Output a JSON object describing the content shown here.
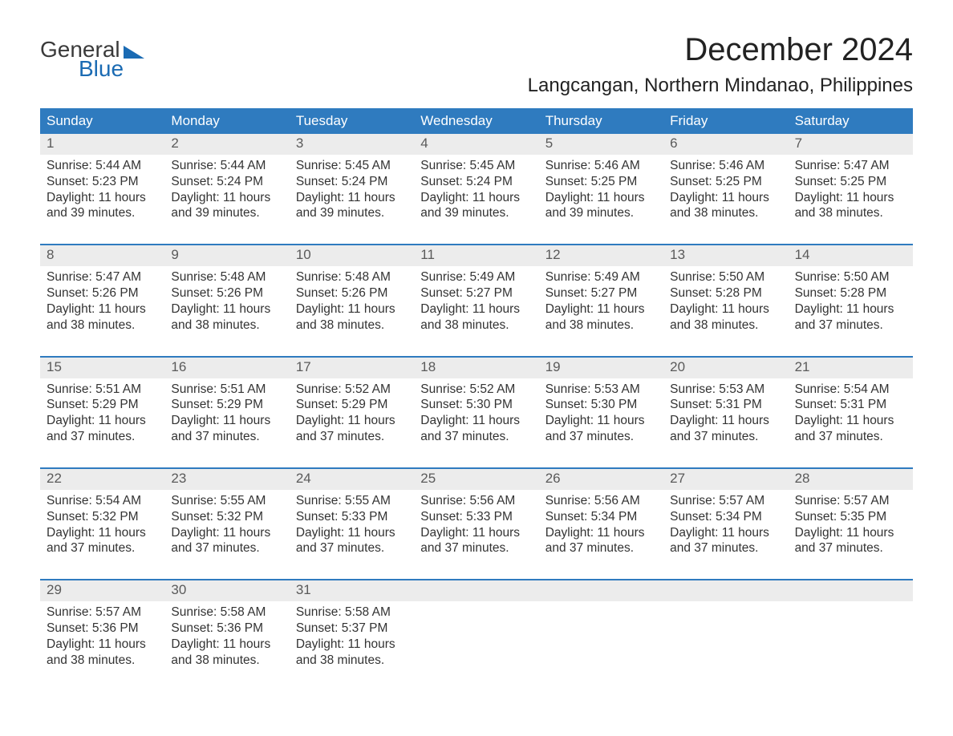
{
  "logo": {
    "text1": "General",
    "text2": "Blue"
  },
  "title": "December 2024",
  "location": "Langcangan, Northern Mindanao, Philippines",
  "colors": {
    "header_bg": "#2f7bbf",
    "header_text": "#ffffff",
    "daynum_bg": "#ececec",
    "daynum_text": "#5a5a5a",
    "body_text": "#333333",
    "week_border": "#2f7bbf",
    "logo_blue": "#1b6bb3",
    "logo_gray": "#3a3a3a"
  },
  "weekdays": [
    "Sunday",
    "Monday",
    "Tuesday",
    "Wednesday",
    "Thursday",
    "Friday",
    "Saturday"
  ],
  "weeks": [
    [
      {
        "n": "1",
        "sunrise": "5:44 AM",
        "sunset": "5:23 PM",
        "dl_h": "11",
        "dl_m": "39"
      },
      {
        "n": "2",
        "sunrise": "5:44 AM",
        "sunset": "5:24 PM",
        "dl_h": "11",
        "dl_m": "39"
      },
      {
        "n": "3",
        "sunrise": "5:45 AM",
        "sunset": "5:24 PM",
        "dl_h": "11",
        "dl_m": "39"
      },
      {
        "n": "4",
        "sunrise": "5:45 AM",
        "sunset": "5:24 PM",
        "dl_h": "11",
        "dl_m": "39"
      },
      {
        "n": "5",
        "sunrise": "5:46 AM",
        "sunset": "5:25 PM",
        "dl_h": "11",
        "dl_m": "39"
      },
      {
        "n": "6",
        "sunrise": "5:46 AM",
        "sunset": "5:25 PM",
        "dl_h": "11",
        "dl_m": "38"
      },
      {
        "n": "7",
        "sunrise": "5:47 AM",
        "sunset": "5:25 PM",
        "dl_h": "11",
        "dl_m": "38"
      }
    ],
    [
      {
        "n": "8",
        "sunrise": "5:47 AM",
        "sunset": "5:26 PM",
        "dl_h": "11",
        "dl_m": "38"
      },
      {
        "n": "9",
        "sunrise": "5:48 AM",
        "sunset": "5:26 PM",
        "dl_h": "11",
        "dl_m": "38"
      },
      {
        "n": "10",
        "sunrise": "5:48 AM",
        "sunset": "5:26 PM",
        "dl_h": "11",
        "dl_m": "38"
      },
      {
        "n": "11",
        "sunrise": "5:49 AM",
        "sunset": "5:27 PM",
        "dl_h": "11",
        "dl_m": "38"
      },
      {
        "n": "12",
        "sunrise": "5:49 AM",
        "sunset": "5:27 PM",
        "dl_h": "11",
        "dl_m": "38"
      },
      {
        "n": "13",
        "sunrise": "5:50 AM",
        "sunset": "5:28 PM",
        "dl_h": "11",
        "dl_m": "38"
      },
      {
        "n": "14",
        "sunrise": "5:50 AM",
        "sunset": "5:28 PM",
        "dl_h": "11",
        "dl_m": "37"
      }
    ],
    [
      {
        "n": "15",
        "sunrise": "5:51 AM",
        "sunset": "5:29 PM",
        "dl_h": "11",
        "dl_m": "37"
      },
      {
        "n": "16",
        "sunrise": "5:51 AM",
        "sunset": "5:29 PM",
        "dl_h": "11",
        "dl_m": "37"
      },
      {
        "n": "17",
        "sunrise": "5:52 AM",
        "sunset": "5:29 PM",
        "dl_h": "11",
        "dl_m": "37"
      },
      {
        "n": "18",
        "sunrise": "5:52 AM",
        "sunset": "5:30 PM",
        "dl_h": "11",
        "dl_m": "37"
      },
      {
        "n": "19",
        "sunrise": "5:53 AM",
        "sunset": "5:30 PM",
        "dl_h": "11",
        "dl_m": "37"
      },
      {
        "n": "20",
        "sunrise": "5:53 AM",
        "sunset": "5:31 PM",
        "dl_h": "11",
        "dl_m": "37"
      },
      {
        "n": "21",
        "sunrise": "5:54 AM",
        "sunset": "5:31 PM",
        "dl_h": "11",
        "dl_m": "37"
      }
    ],
    [
      {
        "n": "22",
        "sunrise": "5:54 AM",
        "sunset": "5:32 PM",
        "dl_h": "11",
        "dl_m": "37"
      },
      {
        "n": "23",
        "sunrise": "5:55 AM",
        "sunset": "5:32 PM",
        "dl_h": "11",
        "dl_m": "37"
      },
      {
        "n": "24",
        "sunrise": "5:55 AM",
        "sunset": "5:33 PM",
        "dl_h": "11",
        "dl_m": "37"
      },
      {
        "n": "25",
        "sunrise": "5:56 AM",
        "sunset": "5:33 PM",
        "dl_h": "11",
        "dl_m": "37"
      },
      {
        "n": "26",
        "sunrise": "5:56 AM",
        "sunset": "5:34 PM",
        "dl_h": "11",
        "dl_m": "37"
      },
      {
        "n": "27",
        "sunrise": "5:57 AM",
        "sunset": "5:34 PM",
        "dl_h": "11",
        "dl_m": "37"
      },
      {
        "n": "28",
        "sunrise": "5:57 AM",
        "sunset": "5:35 PM",
        "dl_h": "11",
        "dl_m": "37"
      }
    ],
    [
      {
        "n": "29",
        "sunrise": "5:57 AM",
        "sunset": "5:36 PM",
        "dl_h": "11",
        "dl_m": "38"
      },
      {
        "n": "30",
        "sunrise": "5:58 AM",
        "sunset": "5:36 PM",
        "dl_h": "11",
        "dl_m": "38"
      },
      {
        "n": "31",
        "sunrise": "5:58 AM",
        "sunset": "5:37 PM",
        "dl_h": "11",
        "dl_m": "38"
      },
      null,
      null,
      null,
      null
    ]
  ],
  "labels": {
    "sunrise": "Sunrise: ",
    "sunset": "Sunset: ",
    "daylight_pre": "Daylight: ",
    "daylight_mid": " hours and ",
    "daylight_suf": " minutes."
  }
}
